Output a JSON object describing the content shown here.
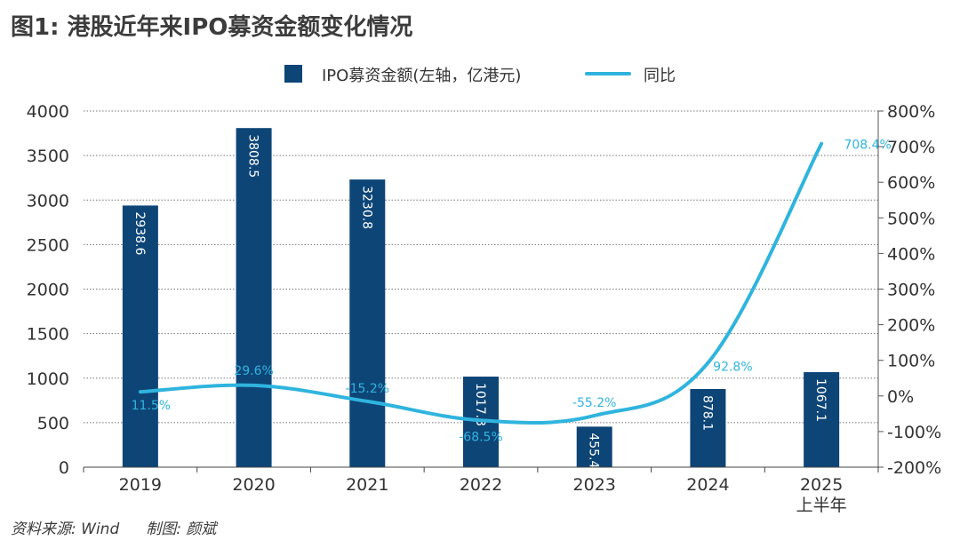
{
  "title": "图1: 港股近年来IPO募资金额变化情况",
  "source": "资料来源: Wind",
  "author": "制图: 颜斌",
  "colors": {
    "bar": "#0d4577",
    "line": "#2fb4de",
    "grid": "#777777"
  },
  "chart_data": {
    "type": "bar+line",
    "categories": [
      "2019",
      "2020",
      "2021",
      "2022",
      "2023",
      "2024",
      "2025"
    ],
    "category_sublabels": [
      "",
      "",
      "",
      "",
      "",
      "",
      "上半年"
    ],
    "series": [
      {
        "name": "IPO募资金额(左轴，亿港元)",
        "type": "bar",
        "axis": "left",
        "values": [
          2938.6,
          3808.5,
          3230.8,
          1017.3,
          455.4,
          878.1,
          1067.1
        ],
        "labels": [
          "2938.6",
          "3808.5",
          "3230.8",
          "1017.3",
          "455.4",
          "878.1",
          "1067.1"
        ]
      },
      {
        "name": "同比",
        "type": "line",
        "axis": "right",
        "values": [
          11.5,
          29.6,
          -15.2,
          -68.5,
          -55.2,
          92.8,
          708.4
        ],
        "labels": [
          "11.5%",
          "29.6%",
          "-15.2%",
          "-68.5%",
          "-55.2%",
          "92.8%",
          "708.4%"
        ]
      }
    ],
    "y_left": {
      "min": 0,
      "max": 4000,
      "ticks": [
        "0",
        "500",
        "1000",
        "1500",
        "2000",
        "2500",
        "3000",
        "3500",
        "4000"
      ]
    },
    "y_right": {
      "min": -200,
      "max": 800,
      "ticks": [
        "-200%",
        "-100%",
        "0%",
        "100%",
        "200%",
        "300%",
        "400%",
        "500%",
        "600%",
        "700%",
        "800%"
      ]
    },
    "legend_position": "top-center",
    "grid": "dotted horizontal"
  }
}
